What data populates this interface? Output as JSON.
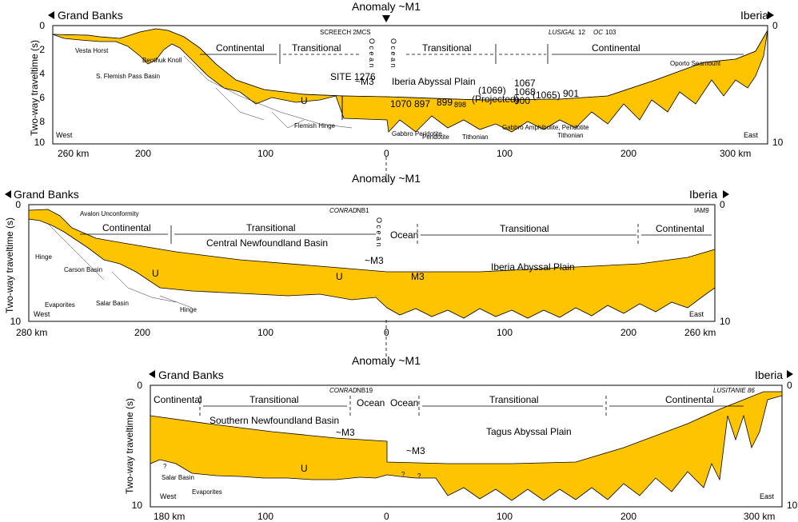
{
  "anomaly_label": "Anomaly ~M1",
  "y_axis_label": "Two-way traveltime (s)",
  "panels": [
    {
      "id": "top",
      "left_region": "Grand Banks",
      "right_region": "Iberia",
      "survey": "SCREECH 2MCS",
      "survey2_italic": "LUSIGAL",
      "survey2_num": "12",
      "survey3_italic": "OC",
      "survey3_num": "103",
      "zones": {
        "continental_w": "Continental",
        "transitional_w": "Transitional",
        "ocean_w": "O c e a n",
        "ocean_e": "O c e a n",
        "transitional_e": "Transitional",
        "continental_e": "Continental"
      },
      "y_ticks": [
        "0",
        "2",
        "4",
        "6",
        "8",
        "10"
      ],
      "right_y_ticks": [
        "0",
        "10"
      ],
      "x_ticks": [
        "260 km",
        "200",
        "100",
        "0",
        "100",
        "200",
        "300 km"
      ],
      "dir_w": "West",
      "dir_e": "East",
      "labels": {
        "vesta": "Vesta Horst",
        "flemish_pass": "S. Flemish Pass Basin",
        "beothuk": "Beothuk Knoll",
        "site": "SITE 1276",
        "m3": "~M3",
        "u": "U",
        "flemish_hinge": "Flemish Hinge",
        "iap": "Iberia Abyssal Plain",
        "s1070": "1070",
        "s897": "897",
        "s899": "899",
        "s898": "898",
        "s1069": "(1069)",
        "projected": "(Projected)",
        "s1067": "1067",
        "s1068": "1068",
        "s900": "900",
        "s1065": "(1065)",
        "s901": "901",
        "gabbro_perid": "Gabbro Peridotite",
        "peridotite": "Peridotite",
        "tithonian1": "Tithonian",
        "gabbro_amph": "Gabbro Amphibolite, Peridotite",
        "tithonian2": "Tithonian",
        "oporto": "Oporto Seamount"
      }
    },
    {
      "id": "middle",
      "left_region": "Grand Banks",
      "right_region": "Iberia",
      "survey_italic": "CONRAD",
      "survey_num": "NB1",
      "survey_right": "IAM9",
      "zones": {
        "continental_w": "Continental",
        "transitional_w": "Transitional",
        "ocean_w": "O c e a n",
        "ocean_e": "Ocean",
        "transitional_e": "Transitional",
        "continental_e": "Continental"
      },
      "x_ticks": [
        "280 km",
        "200",
        "100",
        "0",
        "100",
        "200",
        "260 km"
      ],
      "y_ticks": [
        "0",
        "10"
      ],
      "dir_w": "West",
      "dir_e": "East",
      "labels": {
        "avalon": "Avalon  Unconformity",
        "hinge1": "Hinge",
        "cnb": "Central  Newfoundland Basin",
        "carson": "Carson Basin",
        "u1": "U",
        "u2": "U",
        "m3w": "~M3",
        "m3e": "M3",
        "evaporites": "Evaporites",
        "salar": "Salar Basin",
        "hinge2": "Hinge",
        "iap": "Iberia Abyssal Plain"
      }
    },
    {
      "id": "bottom",
      "left_region": "Grand Banks",
      "right_region": "Iberia",
      "survey_italic": "CONRAD",
      "survey_num": "NB19",
      "survey_right": "LUSITANIE 86",
      "zones": {
        "continental_w": "Continental",
        "transitional_w": "Transitional",
        "ocean_w": "Ocean",
        "ocean_e": "Ocean",
        "transitional_e": "Transitional",
        "continental_e": "Continental"
      },
      "x_ticks": [
        "180 km",
        "100",
        "0",
        "100",
        "200",
        "300 km"
      ],
      "y_ticks": [
        "0",
        "10"
      ],
      "dir_w": "West",
      "dir_e": "East",
      "labels": {
        "snb": "Southern Newfoundland Basin",
        "m3w": "~M3",
        "m3e": "~M3",
        "u": "U",
        "salar": "Salar Basin",
        "evaporites": "Evaporites",
        "q1": "?",
        "q2": "?",
        "q3": "?",
        "tap": "Tagus Abyssal Plain"
      }
    }
  ]
}
